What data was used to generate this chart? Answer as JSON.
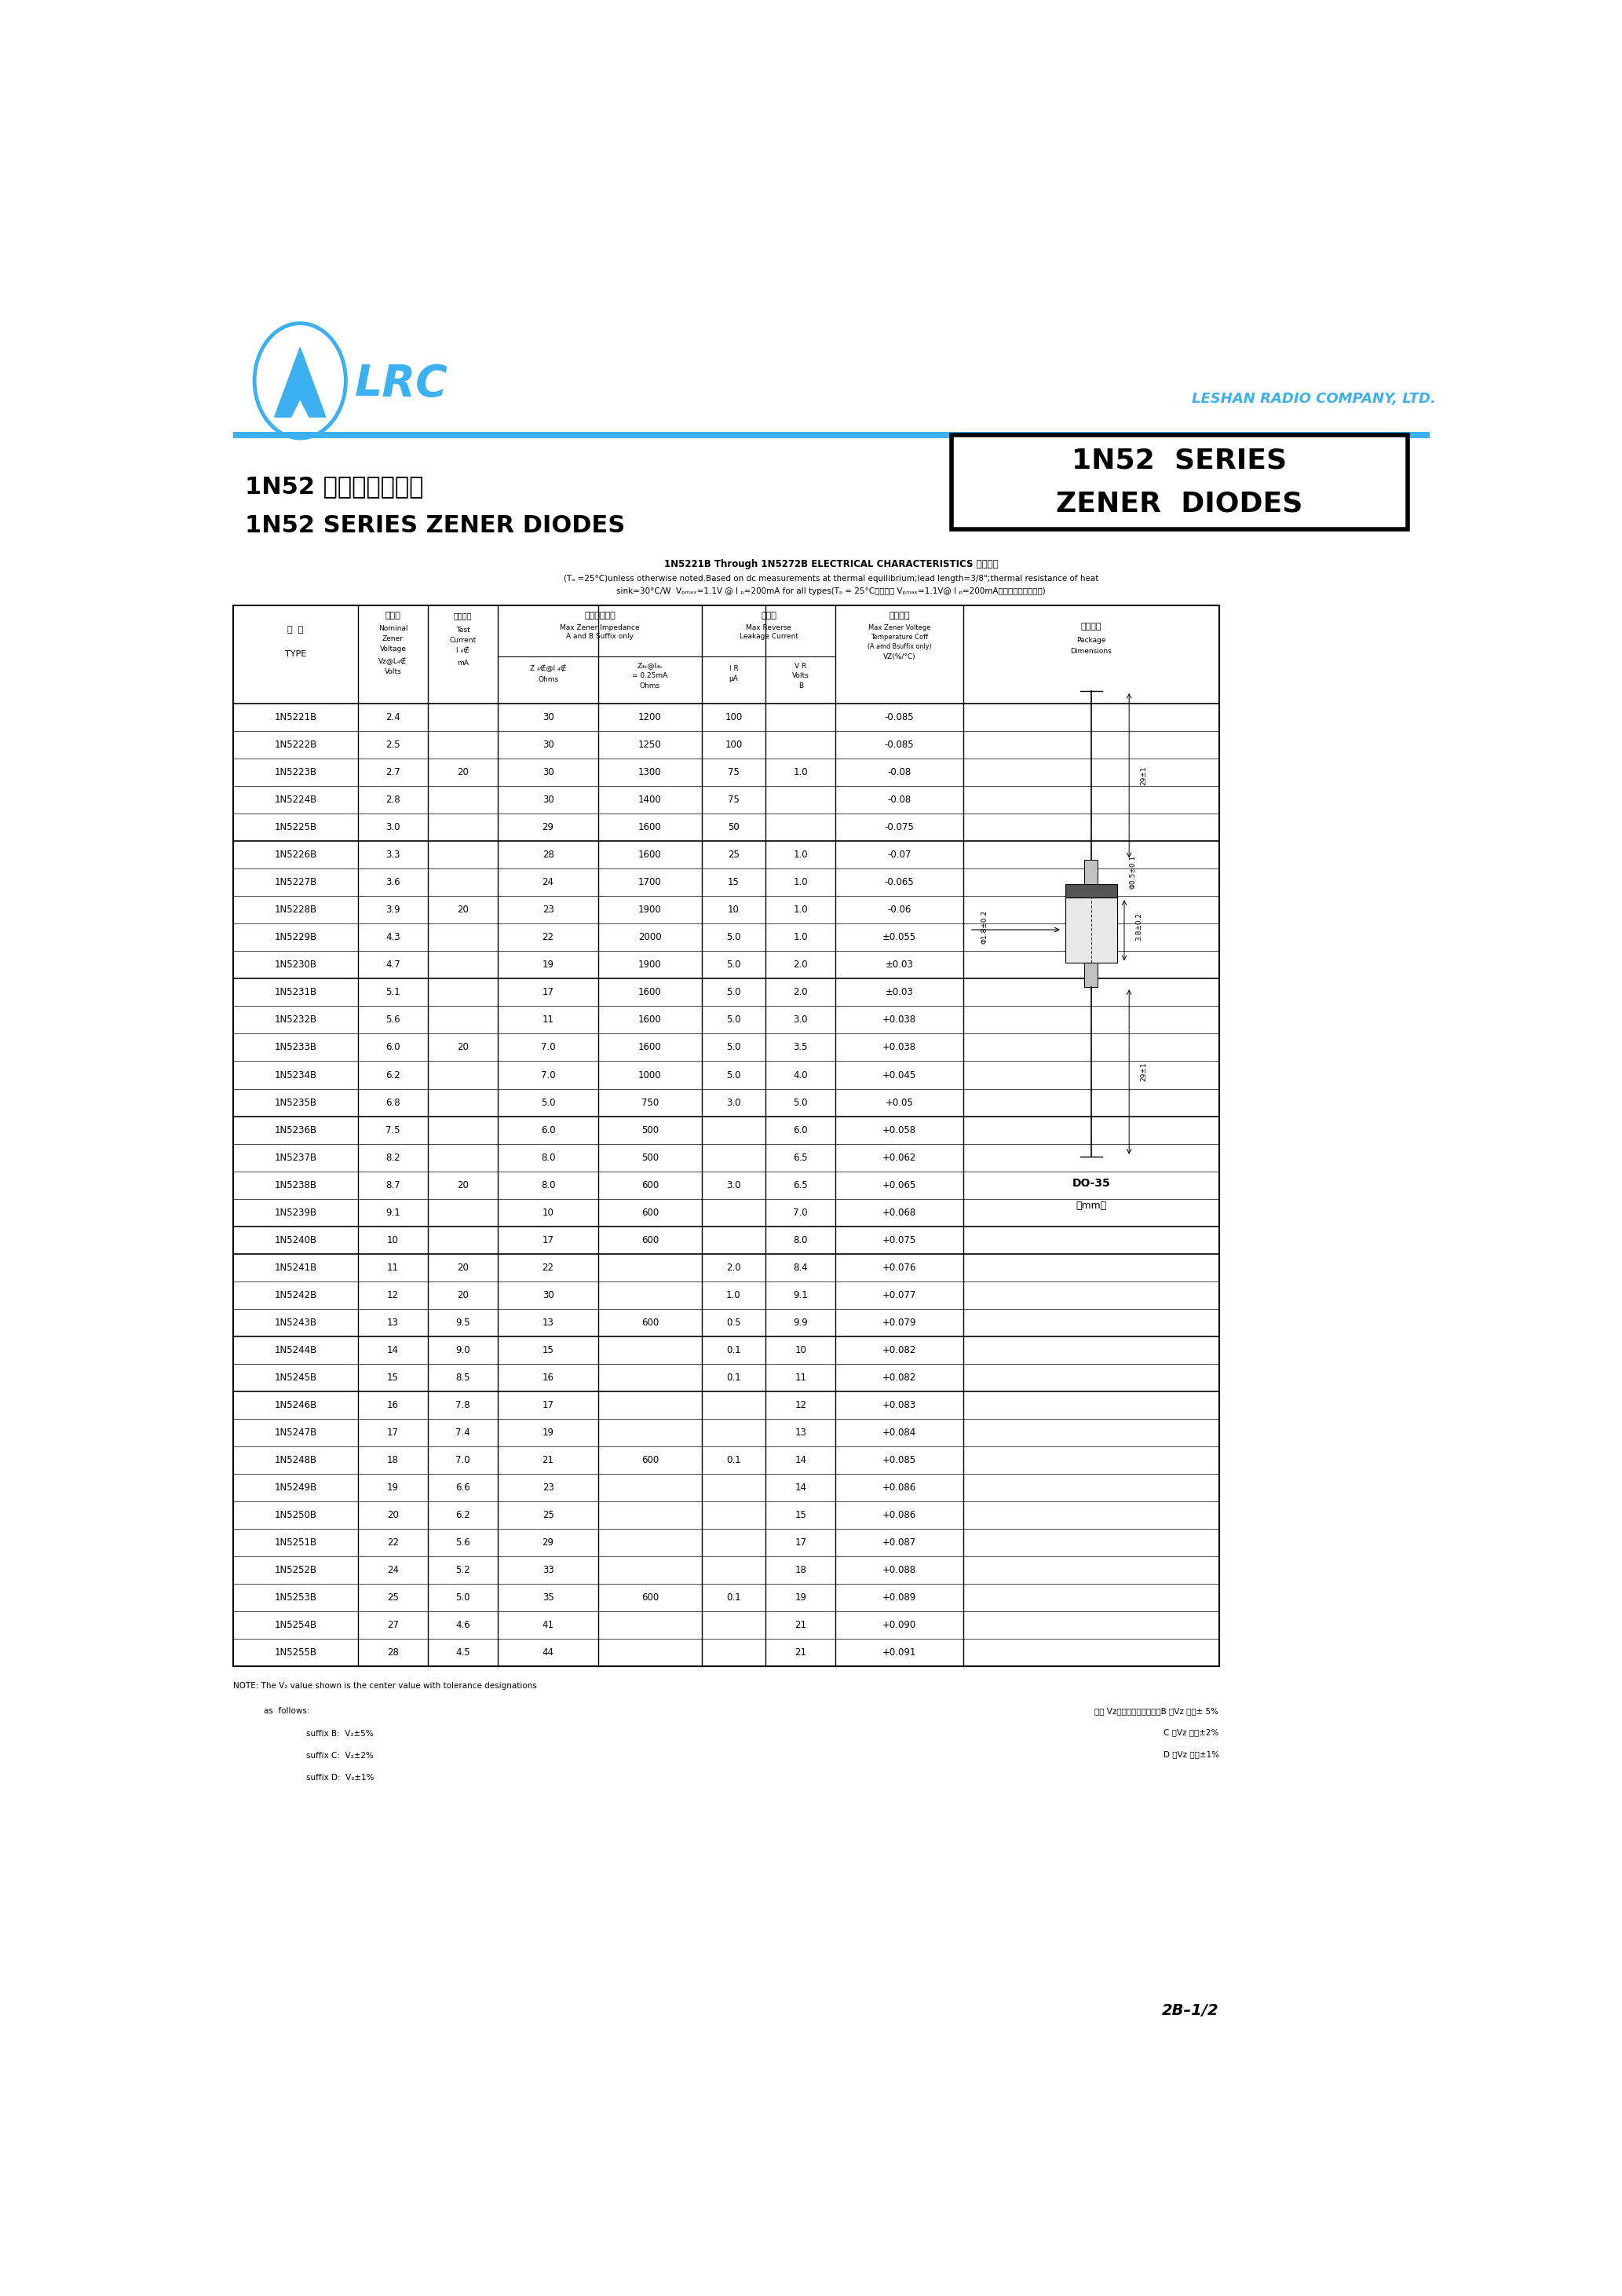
{
  "page_bg": "#ffffff",
  "logo_color": "#3cb0f0",
  "company_name": "LESHAN RADIO COMPANY, LTD.",
  "series_title_line1": "1N52  SERIES",
  "series_title_line2": "ZENER  DIODES",
  "product_title_cn": "1N52 系列稳压二极管",
  "product_title_en": "1N52 SERIES ZENER DIODES",
  "electrical_title": "1N5221B Through 1N5272B ELECTRICAL CHARACTERISTICS 电性参数",
  "conditions_line1": "(Tₐ =25°C)unless otherwise noted.Based on dc measurements at thermal equilibrium;lead length=3/8\";thermal resistance of heat",
  "conditions_line2": "sink=30°C/W  Vₚₘₐₓ=1.1V @ I ₚ=200mA for all types(Tₐ = 25°C如无型号 Vₚₘₐₓ=1.1V@ I ₚ=200mA，其它特别说明外。)",
  "table_data": [
    [
      "1N5221B",
      "2.4",
      "",
      "30",
      "1200",
      "100",
      "",
      "-0.085"
    ],
    [
      "1N5222B",
      "2.5",
      "",
      "30",
      "1250",
      "100",
      "",
      "-0.085"
    ],
    [
      "1N5223B",
      "2.7",
      "20",
      "30",
      "1300",
      "75",
      "1.0",
      "-0.08"
    ],
    [
      "1N5224B",
      "2.8",
      "",
      "30",
      "1400",
      "75",
      "",
      "-0.08"
    ],
    [
      "1N5225B",
      "3.0",
      "",
      "29",
      "1600",
      "50",
      "",
      "-0.075"
    ],
    [
      "1N5226B",
      "3.3",
      "",
      "28",
      "1600",
      "25",
      "1.0",
      "-0.07"
    ],
    [
      "1N5227B",
      "3.6",
      "",
      "24",
      "1700",
      "15",
      "1.0",
      "-0.065"
    ],
    [
      "1N5228B",
      "3.9",
      "20",
      "23",
      "1900",
      "10",
      "1.0",
      "-0.06"
    ],
    [
      "1N5229B",
      "4.3",
      "",
      "22",
      "2000",
      "5.0",
      "1.0",
      "±0.055"
    ],
    [
      "1N5230B",
      "4.7",
      "",
      "19",
      "1900",
      "5.0",
      "2.0",
      "±0.03"
    ],
    [
      "1N5231B",
      "5.1",
      "",
      "17",
      "1600",
      "5.0",
      "2.0",
      "±0.03"
    ],
    [
      "1N5232B",
      "5.6",
      "",
      "11",
      "1600",
      "5.0",
      "3.0",
      "+0.038"
    ],
    [
      "1N5233B",
      "6.0",
      "20",
      "7.0",
      "1600",
      "5.0",
      "3.5",
      "+0.038"
    ],
    [
      "1N5234B",
      "6.2",
      "",
      "7.0",
      "1000",
      "5.0",
      "4.0",
      "+0.045"
    ],
    [
      "1N5235B",
      "6.8",
      "",
      "5.0",
      "750",
      "3.0",
      "5.0",
      "+0.05"
    ],
    [
      "1N5236B",
      "7.5",
      "",
      "6.0",
      "500",
      "",
      "6.0",
      "+0.058"
    ],
    [
      "1N5237B",
      "8.2",
      "",
      "8.0",
      "500",
      "",
      "6.5",
      "+0.062"
    ],
    [
      "1N5238B",
      "8.7",
      "20",
      "8.0",
      "600",
      "3.0",
      "6.5",
      "+0.065"
    ],
    [
      "1N5239B",
      "9.1",
      "",
      "10",
      "600",
      "",
      "7.0",
      "+0.068"
    ],
    [
      "1N5240B",
      "10",
      "",
      "17",
      "600",
      "",
      "8.0",
      "+0.075"
    ],
    [
      "1N5241B",
      "11",
      "20",
      "22",
      "",
      "2.0",
      "8.4",
      "+0.076"
    ],
    [
      "1N5242B",
      "12",
      "20",
      "30",
      "",
      "1.0",
      "9.1",
      "+0.077"
    ],
    [
      "1N5243B",
      "13",
      "9.5",
      "13",
      "600",
      "0.5",
      "9.9",
      "+0.079"
    ],
    [
      "1N5244B",
      "14",
      "9.0",
      "15",
      "",
      "0.1",
      "10",
      "+0.082"
    ],
    [
      "1N5245B",
      "15",
      "8.5",
      "16",
      "",
      "0.1",
      "11",
      "+0.082"
    ],
    [
      "1N5246B",
      "16",
      "7.8",
      "17",
      "",
      "",
      "12",
      "+0.083"
    ],
    [
      "1N5247B",
      "17",
      "7.4",
      "19",
      "",
      "",
      "13",
      "+0.084"
    ],
    [
      "1N5248B",
      "18",
      "7.0",
      "21",
      "600",
      "0.1",
      "14",
      "+0.085"
    ],
    [
      "1N5249B",
      "19",
      "6.6",
      "23",
      "",
      "",
      "14",
      "+0.086"
    ],
    [
      "1N5250B",
      "20",
      "6.2",
      "25",
      "",
      "",
      "15",
      "+0.086"
    ],
    [
      "1N5251B",
      "22",
      "5.6",
      "29",
      "",
      "",
      "17",
      "+0.087"
    ],
    [
      "1N5252B",
      "24",
      "5.2",
      "33",
      "",
      "",
      "18",
      "+0.088"
    ],
    [
      "1N5253B",
      "25",
      "5.0",
      "35",
      "600",
      "0.1",
      "19",
      "+0.089"
    ],
    [
      "1N5254B",
      "27",
      "4.6",
      "41",
      "",
      "",
      "21",
      "+0.090"
    ],
    [
      "1N5255B",
      "28",
      "4.5",
      "44",
      "",
      "",
      "21",
      "+0.091"
    ]
  ],
  "group_separators": [
    4,
    9,
    14,
    18,
    19,
    22,
    24
  ],
  "page_num": "2B–1/2"
}
